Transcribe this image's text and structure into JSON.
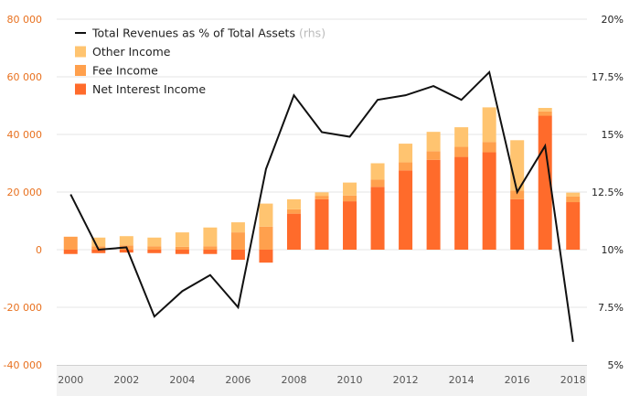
{
  "chart_data": {
    "type": "bar",
    "stacked": true,
    "categories": [
      "2000",
      "2001",
      "2002",
      "2003",
      "2004",
      "2005",
      "2006",
      "2007",
      "2008",
      "2009",
      "2010",
      "2011",
      "2012",
      "2013",
      "2014",
      "2015",
      "2016",
      "2017",
      "2018"
    ],
    "x_tick_labels": [
      "2000",
      "2002",
      "2004",
      "2006",
      "2008",
      "2010",
      "2012",
      "2014",
      "2016",
      "2018"
    ],
    "y_left": {
      "range": [
        -40000,
        80000
      ],
      "ticks": [
        -40000,
        -20000,
        0,
        20000,
        40000,
        60000,
        80000
      ],
      "tick_labels": [
        "-40 000",
        "-20 000",
        "0",
        "20 000",
        "40 000",
        "60 000",
        "80 000"
      ]
    },
    "y_right": {
      "range": [
        5,
        20
      ],
      "ticks": [
        5,
        7.5,
        10,
        12.5,
        15,
        17.5,
        20
      ],
      "tick_labels": [
        "5%",
        "7.5%",
        "10%",
        "12.5%",
        "15%",
        "17.5%",
        "20%"
      ]
    },
    "series": [
      {
        "name": "Net Interest Income",
        "color": "#ff6b2b",
        "axis": "left",
        "values": [
          -1500,
          -1200,
          -1000,
          -1200,
          -1500,
          -1500,
          -3500,
          -4500,
          12500,
          17500,
          16800,
          21800,
          27500,
          31200,
          32200,
          33800,
          17500,
          46500,
          16500
        ]
      },
      {
        "name": "Fee Income",
        "color": "#ffa04d",
        "axis": "left",
        "values": [
          4500,
          1200,
          1500,
          1200,
          1000,
          1200,
          6000,
          8000,
          1500,
          1200,
          2000,
          2500,
          2800,
          3000,
          3500,
          3600,
          3000,
          1500,
          2000
        ]
      },
      {
        "name": "Other Income",
        "color": "#ffc470",
        "axis": "left",
        "values": [
          0,
          3000,
          3200,
          3000,
          5000,
          6500,
          3500,
          8000,
          3500,
          1200,
          4500,
          5700,
          6500,
          6700,
          6800,
          12000,
          17500,
          1200,
          1300
        ]
      },
      {
        "name": "Total Revenues as % of Total Assets",
        "legend_suffix": "(rhs)",
        "color": "#111111",
        "axis": "right",
        "type": "line",
        "values": [
          12.4,
          10.0,
          10.1,
          7.1,
          8.2,
          8.9,
          7.5,
          13.5,
          16.7,
          15.1,
          14.9,
          16.5,
          16.7,
          17.1,
          16.5,
          17.7,
          12.5,
          14.5,
          6.0
        ]
      }
    ],
    "legend_position": "top-left",
    "legend_order": [
      "Total Revenues as % of Total Assets",
      "Other Income",
      "Fee Income",
      "Net Interest Income"
    ],
    "grid": {
      "horizontal": true,
      "vertical": false,
      "color": "#e6e6e6"
    }
  }
}
